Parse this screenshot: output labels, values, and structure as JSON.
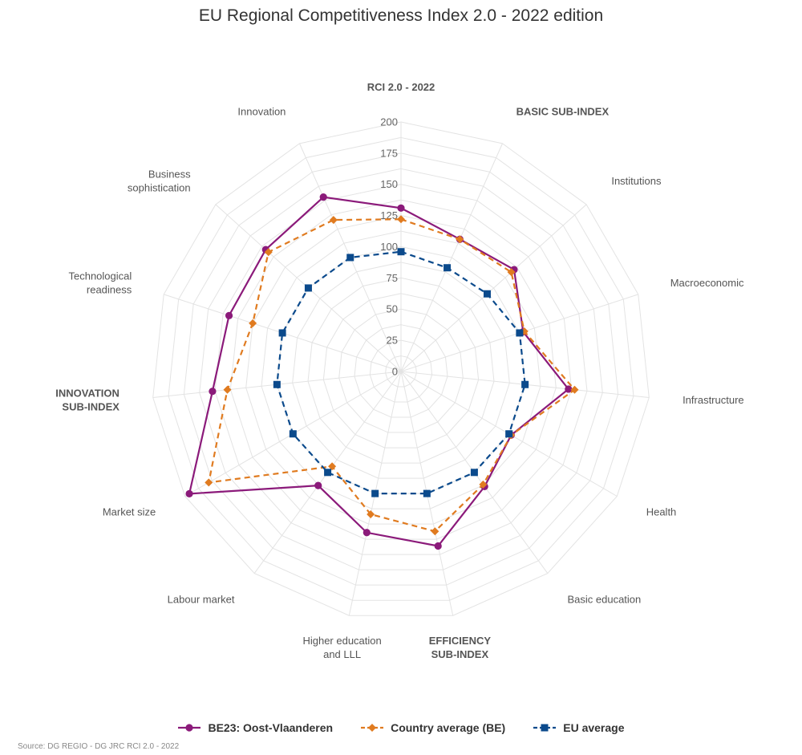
{
  "chart_data": {
    "type": "radar",
    "title": "EU Regional Competitiveness Index 2.0 - 2022 edition",
    "source": "Source: DG REGIO - DG JRC RCI 2.0 - 2022",
    "rlim": [
      0,
      200
    ],
    "ticks": [
      0,
      25,
      50,
      75,
      100,
      125,
      150,
      175,
      200
    ],
    "categories": [
      {
        "label": "RCI 2.0 - 2022",
        "bold": true
      },
      {
        "label": "BASIC SUB-INDEX",
        "bold": true
      },
      {
        "label": "Institutions",
        "bold": false
      },
      {
        "label": "Macroeconomic",
        "bold": false
      },
      {
        "label": "Infrastructure",
        "bold": false
      },
      {
        "label": "Health",
        "bold": false
      },
      {
        "label": "Basic education",
        "bold": false
      },
      {
        "label": "EFFICIENCY SUB-INDEX",
        "bold": true
      },
      {
        "label": "Higher education and LLL",
        "bold": false
      },
      {
        "label": "Labour market",
        "bold": false
      },
      {
        "label": "Market size",
        "bold": false
      },
      {
        "label": "INNOVATION SUB-INDEX",
        "bold": true
      },
      {
        "label": "Technological readiness",
        "bold": false
      },
      {
        "label": "Business sophistication",
        "bold": false
      },
      {
        "label": "Innovation",
        "bold": false
      }
    ],
    "series": [
      {
        "name": "BE23: Oost-Vlaanderen",
        "color": "#8b1a7a",
        "dash": false,
        "marker": "circle",
        "values": [
          131,
          116,
          122,
          103,
          135,
          102,
          114,
          143,
          132,
          113,
          196,
          152,
          145,
          146,
          153
        ]
      },
      {
        "name": "Country average (BE)",
        "color": "#e07b20",
        "dash": true,
        "marker": "diamond",
        "values": [
          122,
          116,
          119,
          104,
          140,
          102,
          112,
          131,
          117,
          94,
          178,
          140,
          125,
          143,
          133
        ]
      },
      {
        "name": "EU average",
        "color": "#0b4a8c",
        "dash": true,
        "marker": "square",
        "values": [
          96,
          91,
          93,
          100,
          100,
          100,
          100,
          100,
          100,
          100,
          100,
          100,
          100,
          100,
          100
        ]
      }
    ],
    "legend_position": "bottom"
  }
}
